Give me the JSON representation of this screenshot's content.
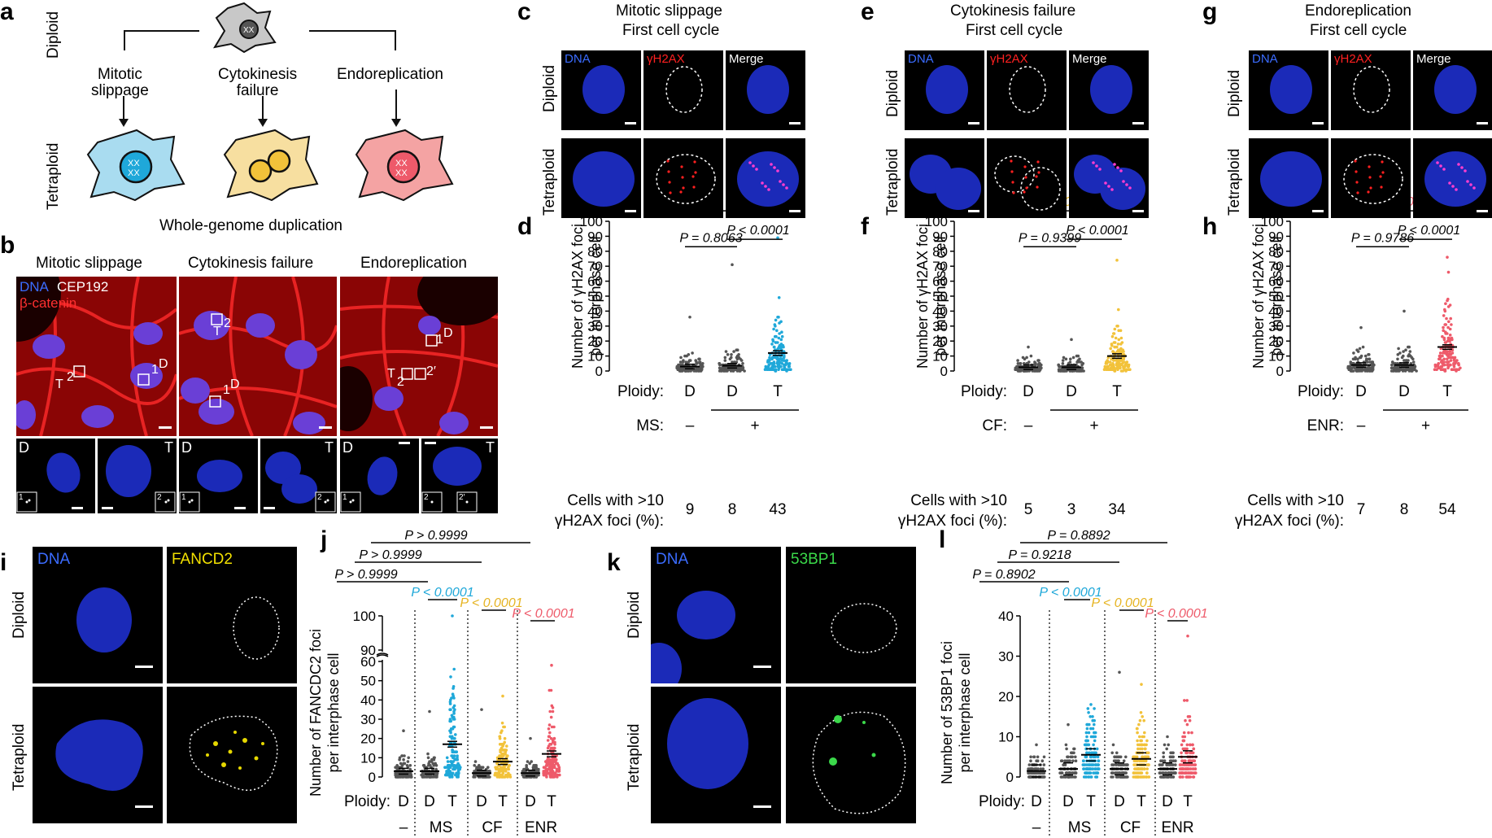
{
  "panels": {
    "a": {
      "label": "a",
      "diploid": "Diploid",
      "tetraploid": "Tetraploid",
      "routes": [
        "Mitotic\nslippage",
        "Cytokinesis\nfailure",
        "Endoreplication"
      ],
      "caption": "Whole-genome duplication",
      "colors": {
        "ms": "#5bc0e8",
        "cf": "#f7dfa0",
        "enr": "#f4a3a3",
        "diploid": "#c8c8c8"
      }
    },
    "b": {
      "label": "b",
      "columns": [
        "Mitotic slippage",
        "Cytokinesis failure",
        "Endoreplication"
      ],
      "legend": {
        "dna": "DNA",
        "cep": "CEP192",
        "bcat": "β-catenin"
      },
      "markers": {
        "ms": [
          "T",
          "2",
          "1",
          "D"
        ],
        "cf": [
          "T",
          "2",
          "1",
          "D"
        ],
        "enr": [
          "1",
          "D",
          "T",
          "2",
          "2′"
        ]
      },
      "insets": {
        "ms": [
          "D",
          "T",
          "1",
          "2"
        ],
        "cf": [
          "D",
          "T",
          "1",
          "2"
        ],
        "enr": [
          "D",
          "T",
          "1",
          "2",
          "2′"
        ]
      }
    },
    "c": {
      "label": "c",
      "title": [
        "Mitotic slippage",
        "First cell cycle"
      ],
      "channels": [
        "DNA",
        "γH2AX",
        "Merge"
      ],
      "rows": [
        "Diploid",
        "Tetraploid"
      ]
    },
    "e": {
      "label": "e",
      "title": [
        "Cytokinesis failure",
        "First cell cycle"
      ],
      "channels": [
        "DNA",
        "γH2AX",
        "Merge"
      ],
      "rows": [
        "Diploid",
        "Tetraploid"
      ]
    },
    "g": {
      "label": "g",
      "title": [
        "Endoreplication",
        "First cell cycle"
      ],
      "channels": [
        "DNA",
        "γH2AX",
        "Merge"
      ],
      "rows": [
        "Diploid",
        "Tetraploid"
      ]
    },
    "i": {
      "label": "i",
      "channels": [
        "DNA",
        "FANCD2"
      ],
      "rows": [
        "Diploid",
        "Tetraploid"
      ]
    },
    "k": {
      "label": "k",
      "channels": [
        "DNA",
        "53BP1"
      ],
      "rows": [
        "Diploid",
        "Tetraploid"
      ]
    }
  },
  "chart_data": [
    {
      "id": "d",
      "label": "d",
      "type": "scatter",
      "ylabel": [
        "Number of γH2AX foci",
        "per interphase cell"
      ],
      "ylim": [
        0,
        100
      ],
      "yticks": [
        0,
        10,
        20,
        30,
        40,
        50,
        60,
        70,
        80,
        90,
        100
      ],
      "categories": [
        "D",
        "D",
        "T"
      ],
      "ploidy_label": "Ploidy:",
      "condition": {
        "label": "MS:",
        "minus": "–",
        "plus": "+"
      },
      "cells_label": [
        "Cells with >10",
        "γH2AX foci (%):"
      ],
      "cells_pct": [
        "9",
        "8",
        "43"
      ],
      "series": [
        {
          "mean": 3,
          "max": 36,
          "color": "#555555"
        },
        {
          "mean": 3.5,
          "max": 71,
          "color": "#555555"
        },
        {
          "mean": 12,
          "max": 89,
          "color": "#1fa8d9"
        }
      ],
      "comparisons": [
        {
          "text": "P = 0.8063",
          "color": "#000000"
        },
        {
          "text": "P < 0.0001",
          "color": "#000000"
        },
        {
          "text": "P < 0.0001",
          "color": "#1fa8d9"
        }
      ]
    },
    {
      "id": "f",
      "label": "f",
      "type": "scatter",
      "ylabel": [
        "Number of γH2AX foci",
        "per interphase cell"
      ],
      "ylim": [
        0,
        100
      ],
      "yticks": [
        0,
        10,
        20,
        30,
        40,
        50,
        60,
        70,
        80,
        90,
        100
      ],
      "categories": [
        "D",
        "D",
        "T"
      ],
      "ploidy_label": "Ploidy:",
      "condition": {
        "label": "CF:",
        "minus": "–",
        "plus": "+"
      },
      "cells_label": [
        "Cells with >10",
        "γH2AX foci (%):"
      ],
      "cells_pct": [
        "5",
        "3",
        "34"
      ],
      "series": [
        {
          "mean": 2.5,
          "max": 16,
          "color": "#555555"
        },
        {
          "mean": 2.5,
          "max": 21,
          "color": "#555555"
        },
        {
          "mean": 10,
          "max": 74,
          "color": "#f2c23a"
        }
      ],
      "comparisons": [
        {
          "text": "P = 0.9399",
          "color": "#000000"
        },
        {
          "text": "P < 0.0001",
          "color": "#000000"
        },
        {
          "text": "P < 0.0001",
          "color": "#e6b422"
        }
      ]
    },
    {
      "id": "h",
      "label": "h",
      "type": "scatter",
      "ylabel": [
        "Number of γH2AX foci",
        "per interphase cell"
      ],
      "ylim": [
        0,
        100
      ],
      "yticks": [
        0,
        10,
        20,
        30,
        40,
        50,
        60,
        70,
        80,
        90,
        100
      ],
      "categories": [
        "D",
        "D",
        "T"
      ],
      "ploidy_label": "Ploidy:",
      "condition": {
        "label": "ENR:",
        "minus": "–",
        "plus": "+"
      },
      "cells_label": [
        "Cells with >10",
        "γH2AX foci (%):"
      ],
      "cells_pct": [
        "7",
        "8",
        "54"
      ],
      "series": [
        {
          "mean": 4,
          "max": 29,
          "color": "#555555"
        },
        {
          "mean": 4,
          "max": 40,
          "color": "#555555"
        },
        {
          "mean": 16,
          "max": 76,
          "color": "#ee5a6a"
        }
      ],
      "comparisons": [
        {
          "text": "P = 0.9786",
          "color": "#000000"
        },
        {
          "text": "P < 0.0001",
          "color": "#000000"
        },
        {
          "text": "P < 0.0001",
          "color": "#ee5a6a"
        }
      ]
    },
    {
      "id": "j",
      "label": "j",
      "type": "scatter",
      "ylabel": [
        "Number of FANCDC2 foci",
        "per interphase cell"
      ],
      "yticks": [
        0,
        10,
        20,
        30,
        40,
        50,
        60,
        90,
        100
      ],
      "axis_break": [
        60,
        90
      ],
      "categories": [
        "D",
        "D",
        "T",
        "D",
        "T",
        "D",
        "T"
      ],
      "ploidy_label": "Ploidy:",
      "groups": [
        "–",
        "MS",
        "CF",
        "ENR"
      ],
      "series": [
        {
          "mean": 3,
          "max": 24,
          "color": "#555555"
        },
        {
          "mean": 3,
          "max": 34,
          "color": "#555555"
        },
        {
          "mean": 17,
          "max": 100,
          "color": "#1fa8d9"
        },
        {
          "mean": 2,
          "max": 35,
          "color": "#555555"
        },
        {
          "mean": 8,
          "max": 42,
          "color": "#f2c23a"
        },
        {
          "mean": 2,
          "max": 20,
          "color": "#555555"
        },
        {
          "mean": 12,
          "max": 58,
          "color": "#ee5a6a"
        }
      ],
      "comparisons": [
        {
          "text": "P > 0.9999",
          "color": "#000000"
        },
        {
          "text": "P > 0.9999",
          "color": "#000000"
        },
        {
          "text": "P > 0.9999",
          "color": "#000000"
        },
        {
          "text": "P < 0.0001",
          "color": "#1fa8d9"
        },
        {
          "text": "P < 0.0001",
          "color": "#e6b422"
        },
        {
          "text": "P < 0.0001",
          "color": "#ee5a6a"
        }
      ]
    },
    {
      "id": "l",
      "label": "l",
      "type": "scatter",
      "ylabel": [
        "Number of 53BP1 foci",
        "per interphase cell"
      ],
      "ylim": [
        0,
        40
      ],
      "yticks": [
        0,
        10,
        20,
        30,
        40
      ],
      "categories": [
        "D",
        "D",
        "T",
        "D",
        "T",
        "D",
        "T"
      ],
      "ploidy_label": "Ploidy:",
      "groups": [
        "–",
        "MS",
        "CF",
        "ENR"
      ],
      "series": [
        {
          "mean": 1.5,
          "max": 8,
          "color": "#555555"
        },
        {
          "mean": 2,
          "max": 13,
          "color": "#555555"
        },
        {
          "mean": 5.5,
          "max": 18,
          "color": "#1fa8d9"
        },
        {
          "mean": 2,
          "max": 26,
          "color": "#555555"
        },
        {
          "mean": 4.5,
          "max": 23,
          "color": "#f2c23a"
        },
        {
          "mean": 2,
          "max": 10,
          "color": "#555555"
        },
        {
          "mean": 5,
          "max": 35,
          "color": "#ee5a6a"
        }
      ],
      "comparisons": [
        {
          "text": "P = 0.8902",
          "color": "#000000"
        },
        {
          "text": "P = 0.9218",
          "color": "#000000"
        },
        {
          "text": "P = 0.8892",
          "color": "#000000"
        },
        {
          "text": "P < 0.0001",
          "color": "#1fa8d9"
        },
        {
          "text": "P < 0.0001",
          "color": "#e6b422"
        },
        {
          "text": "P < 0.0001",
          "color": "#ee5a6a"
        }
      ]
    }
  ]
}
